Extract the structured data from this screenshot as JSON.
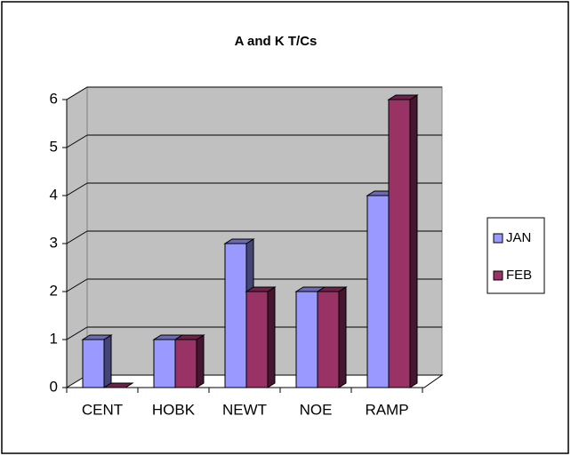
{
  "chart_data": {
    "type": "bar3d",
    "title": "A and K T/Cs",
    "categories": [
      "CENT",
      "HOBK",
      "NEWT",
      "NOE",
      "RAMP"
    ],
    "series": [
      {
        "name": "JAN",
        "color": "#9999ff",
        "values": [
          1,
          1,
          3,
          2,
          4
        ]
      },
      {
        "name": "FEB",
        "color": "#993366",
        "values": [
          0,
          1,
          2,
          2,
          6
        ]
      }
    ],
    "ylim": [
      0,
      6
    ],
    "yticks": [
      0,
      1,
      2,
      3,
      4,
      5,
      6
    ],
    "grid": true,
    "legend": "right"
  }
}
